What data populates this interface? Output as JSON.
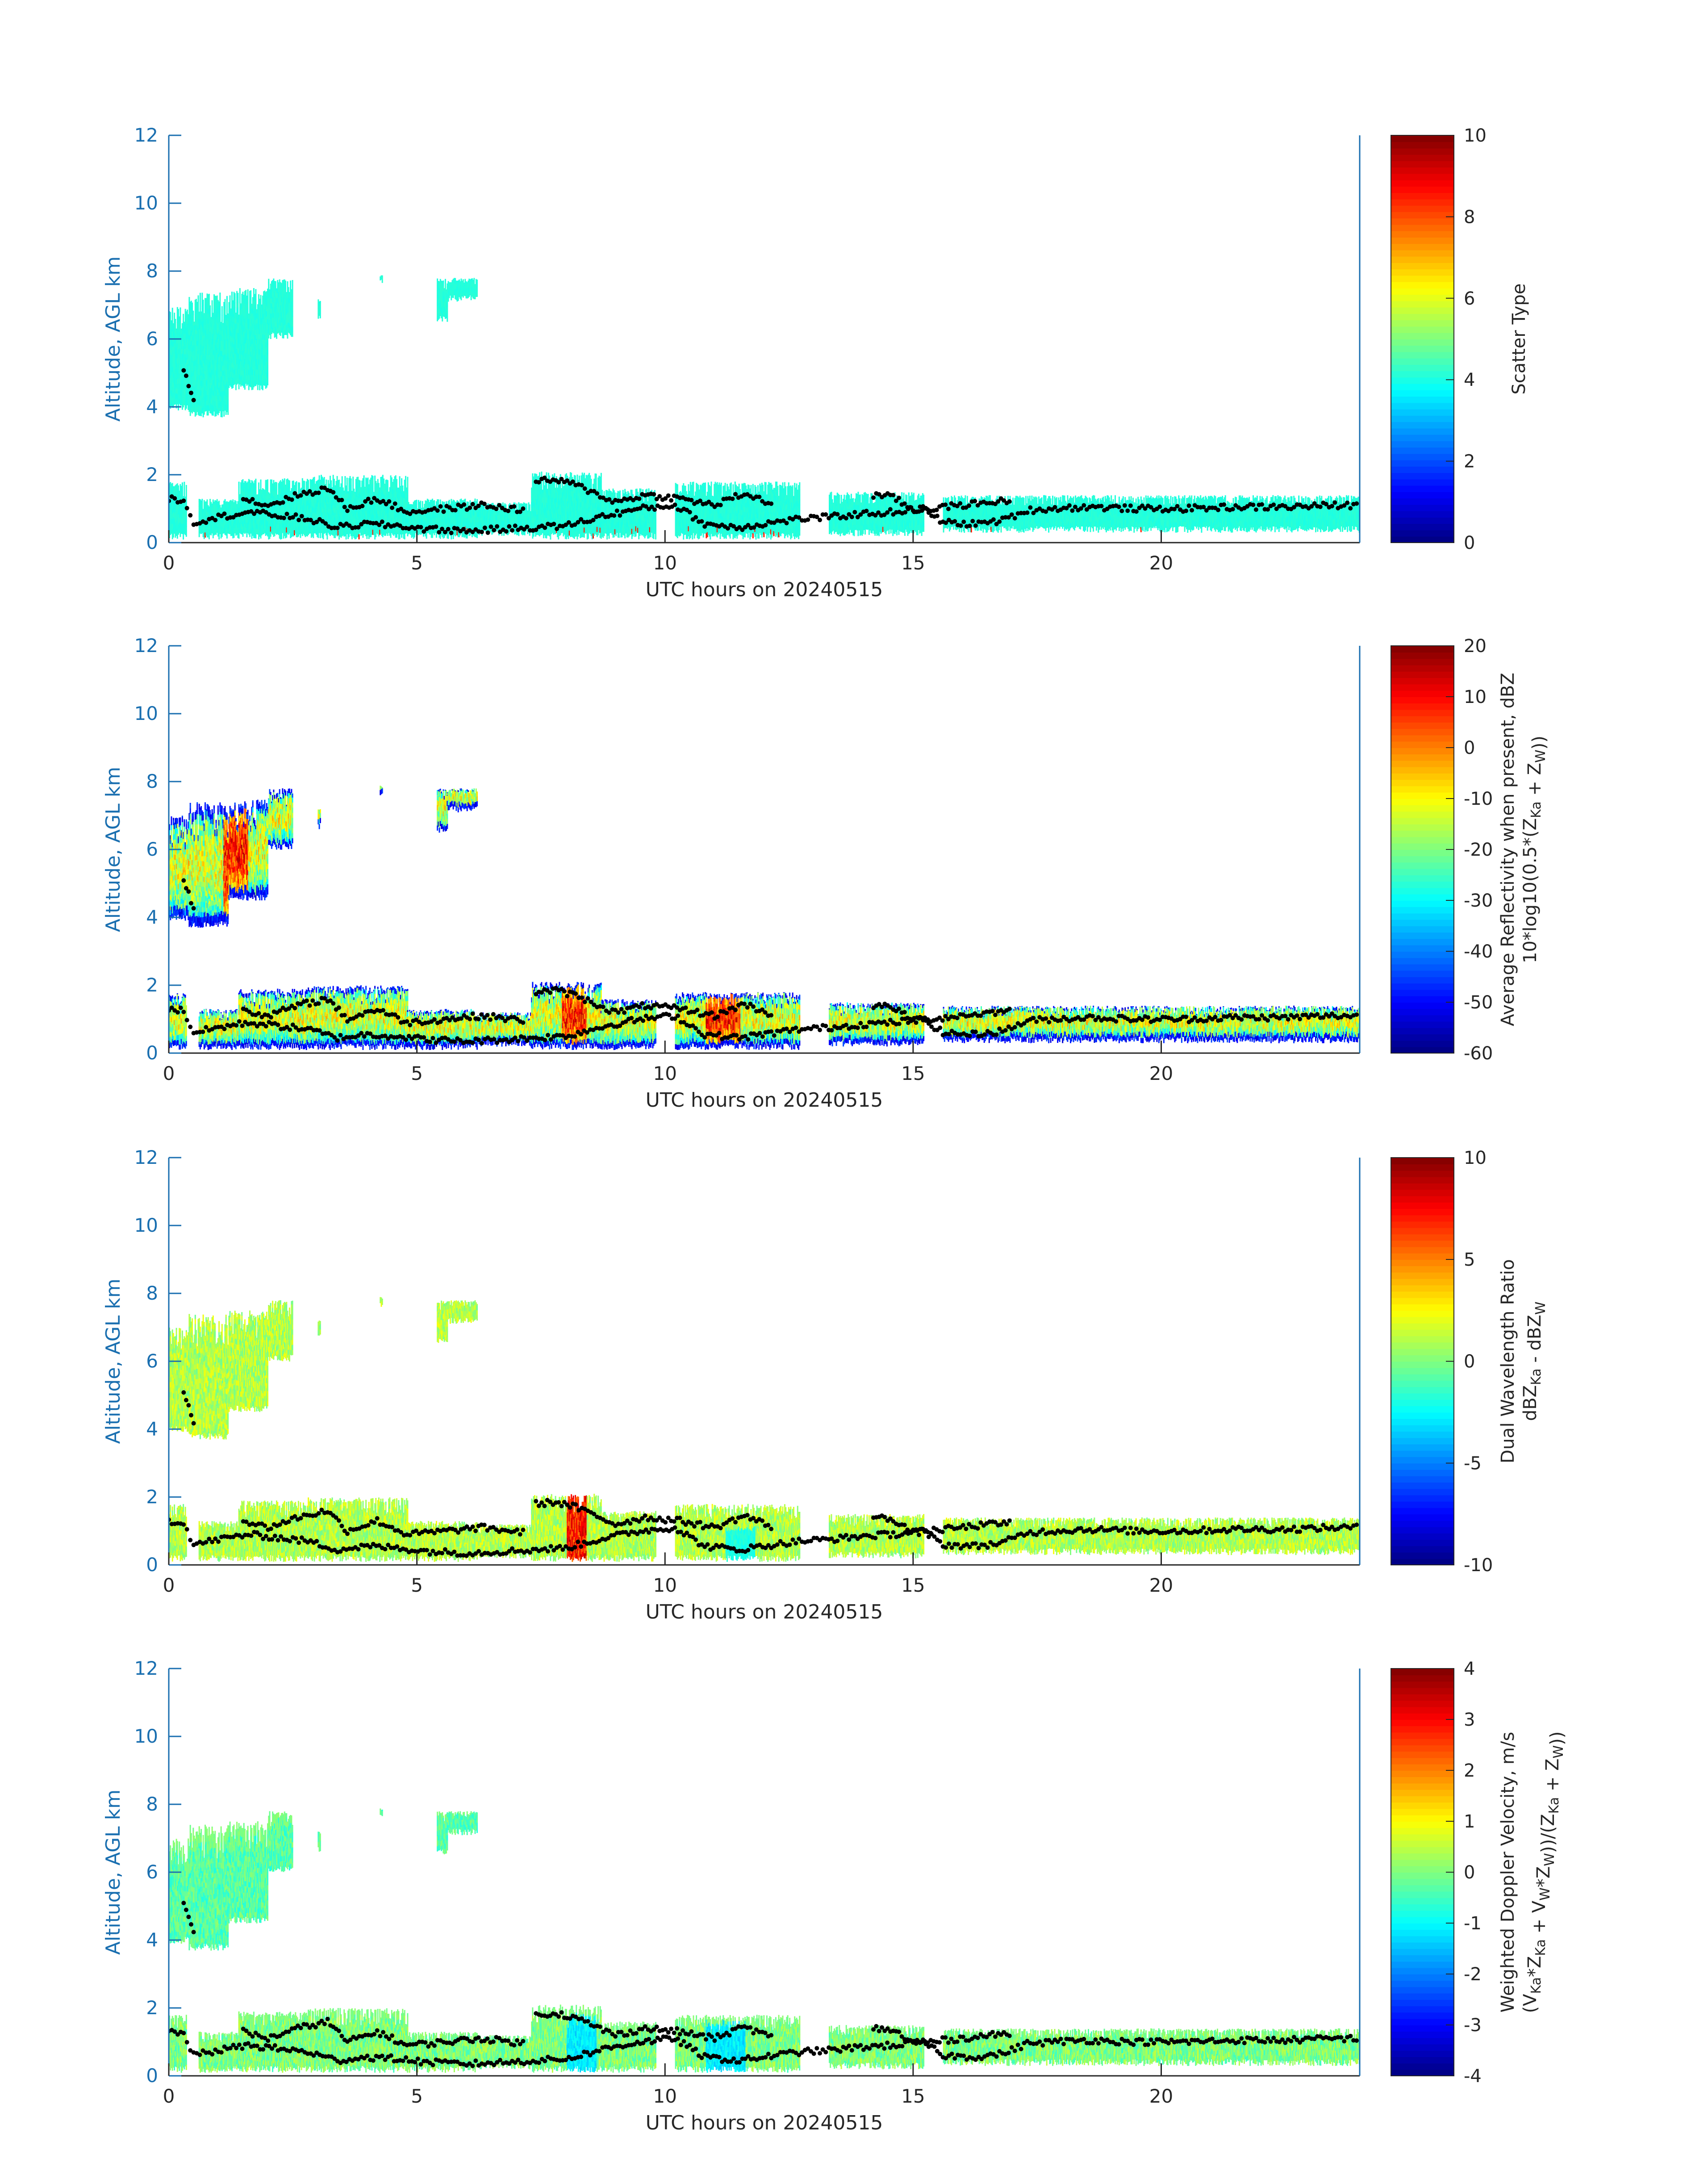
{
  "figure": {
    "background": "#ffffff",
    "axis_color": "#1a6fb0",
    "point_color": "#000000"
  },
  "chart_data": [
    {
      "type": "heatmap",
      "title": "",
      "xlabel": "UTC hours on 20240515",
      "ylabel": "Altitude, AGL km",
      "xlim": [
        0,
        24
      ],
      "ylim": [
        0,
        12
      ],
      "xticks": [
        "0",
        "5",
        "10",
        "15",
        "20"
      ],
      "yticks": [
        "0",
        "2",
        "4",
        "6",
        "8",
        "10",
        "12"
      ],
      "colorbar": {
        "label_lines": [
          "Scatter Type"
        ],
        "range": [
          0,
          10
        ],
        "ticks": [
          "0",
          "2",
          "4",
          "6",
          "8",
          "10"
        ],
        "colormap": "jet"
      },
      "field": "scatter_type"
    },
    {
      "type": "heatmap",
      "title": "",
      "xlabel": "UTC hours on 20240515",
      "ylabel": "Altitude, AGL km",
      "xlim": [
        0,
        24
      ],
      "ylim": [
        0,
        12
      ],
      "xticks": [
        "0",
        "5",
        "10",
        "15",
        "20"
      ],
      "yticks": [
        "0",
        "2",
        "4",
        "6",
        "8",
        "10",
        "12"
      ],
      "colorbar": {
        "label_lines": [
          "Average Reflectivity when present, dBZ",
          "10*log10(0.5*(Z_Ka + Z_W))"
        ],
        "range": [
          -60,
          20
        ],
        "ticks": [
          "-60",
          "-50",
          "-40",
          "-30",
          "-20",
          "-10",
          "0",
          "10",
          "20"
        ],
        "colormap": "jet"
      },
      "field": "reflectivity"
    },
    {
      "type": "heatmap",
      "title": "",
      "xlabel": "UTC hours on 20240515",
      "ylabel": "Altitude, AGL km",
      "xlim": [
        0,
        24
      ],
      "ylim": [
        0,
        12
      ],
      "xticks": [
        "0",
        "5",
        "10",
        "15",
        "20"
      ],
      "yticks": [
        "0",
        "2",
        "4",
        "6",
        "8",
        "10",
        "12"
      ],
      "colorbar": {
        "label_lines": [
          "Dual Wavelength Ratio",
          "dBZ_Ka - dBZ_W"
        ],
        "range": [
          -10,
          10
        ],
        "ticks": [
          "-10",
          "-5",
          "0",
          "5",
          "10"
        ],
        "colormap": "jet"
      },
      "field": "dwr"
    },
    {
      "type": "heatmap",
      "title": "",
      "xlabel": "UTC hours on 20240515",
      "ylabel": "Altitude, AGL km",
      "xlim": [
        0,
        24
      ],
      "ylim": [
        0,
        12
      ],
      "xticks": [
        "0",
        "5",
        "10",
        "15",
        "20"
      ],
      "yticks": [
        "0",
        "2",
        "4",
        "6",
        "8",
        "10",
        "12"
      ],
      "colorbar": {
        "label_lines": [
          "Weighted Doppler Velocity, m/s",
          "(V_Ka*Z_Ka + V_W*Z_W))/(Z_Ka + Z_W))"
        ],
        "range": [
          -4,
          4
        ],
        "ticks": [
          "-4",
          "-3",
          "-2",
          "-1",
          "0",
          "1",
          "2",
          "3",
          "4"
        ],
        "colormap": "jet"
      },
      "field": "velocity"
    }
  ],
  "cloud_regions": [
    {
      "x0": 0.0,
      "x1": 0.4,
      "top": 7.0,
      "base": 3.9
    },
    {
      "x0": 0.4,
      "x1": 1.2,
      "top": 7.4,
      "base": 3.7
    },
    {
      "x0": 1.2,
      "x1": 2.0,
      "top": 7.5,
      "base": 4.5
    },
    {
      "x0": 2.0,
      "x1": 2.5,
      "top": 7.8,
      "base": 6.0
    },
    {
      "x0": 3.0,
      "x1": 3.05,
      "top": 7.2,
      "base": 6.6
    },
    {
      "x0": 4.25,
      "x1": 4.3,
      "top": 7.9,
      "base": 7.6
    },
    {
      "x0": 5.4,
      "x1": 5.6,
      "top": 7.8,
      "base": 6.5
    },
    {
      "x0": 5.6,
      "x1": 6.2,
      "top": 7.8,
      "base": 7.1
    },
    {
      "x0": 0.0,
      "x1": 0.35,
      "top": 1.8,
      "base": 0.1
    },
    {
      "x0": 0.6,
      "x1": 1.4,
      "top": 1.3,
      "base": 0.1
    },
    {
      "x0": 1.4,
      "x1": 2.8,
      "top": 1.9,
      "base": 0.1
    },
    {
      "x0": 2.8,
      "x1": 4.8,
      "top": 2.0,
      "base": 0.1
    },
    {
      "x0": 4.8,
      "x1": 6.2,
      "top": 1.3,
      "base": 0.1
    },
    {
      "x0": 6.2,
      "x1": 7.3,
      "top": 1.2,
      "base": 0.2
    },
    {
      "x0": 7.3,
      "x1": 8.7,
      "top": 2.1,
      "base": 0.1
    },
    {
      "x0": 8.7,
      "x1": 9.8,
      "top": 1.6,
      "base": 0.1
    },
    {
      "x0": 10.2,
      "x1": 12.7,
      "top": 1.8,
      "base": 0.1
    },
    {
      "x0": 13.3,
      "x1": 15.2,
      "top": 1.5,
      "base": 0.2
    },
    {
      "x0": 15.6,
      "x1": 17.5,
      "top": 1.4,
      "base": 0.3
    },
    {
      "x0": 17.5,
      "x1": 24.0,
      "top": 1.4,
      "base": 0.3
    }
  ],
  "point_tracks": [
    [
      [
        0.0,
        1.3
      ],
      [
        0.3,
        1.25
      ],
      [
        0.5,
        0.6
      ],
      [
        1.0,
        0.75
      ],
      [
        1.6,
        0.9
      ],
      [
        2.2,
        0.8
      ],
      [
        2.8,
        0.7
      ],
      [
        3.4,
        0.45
      ],
      [
        4.0,
        0.55
      ],
      [
        4.6,
        0.5
      ],
      [
        5.2,
        0.4
      ],
      [
        6.0,
        0.35
      ],
      [
        6.8,
        0.4
      ],
      [
        7.4,
        0.45
      ],
      [
        8.0,
        0.5
      ],
      [
        8.8,
        0.8
      ],
      [
        9.5,
        1.0
      ],
      [
        10.2,
        1.1
      ],
      [
        10.8,
        0.55
      ],
      [
        11.5,
        0.45
      ],
      [
        12.2,
        0.6
      ],
      [
        12.7,
        0.7
      ],
      [
        13.3,
        0.75
      ],
      [
        14.0,
        0.85
      ],
      [
        14.6,
        0.9
      ],
      [
        15.2,
        1.0
      ],
      [
        15.6,
        0.6
      ],
      [
        16.2,
        0.55
      ],
      [
        16.8,
        0.65
      ],
      [
        17.3,
        0.95
      ],
      [
        17.8,
        1.0
      ],
      [
        18.5,
        1.05
      ],
      [
        19.5,
        1.0
      ],
      [
        20.5,
        1.0
      ],
      [
        21.5,
        1.05
      ],
      [
        22.5,
        1.05
      ],
      [
        23.5,
        1.1
      ],
      [
        24.0,
        1.1
      ]
    ],
    [
      [
        0.3,
        5.1
      ],
      [
        0.45,
        4.5
      ],
      [
        0.55,
        4.0
      ]
    ],
    [
      [
        1.5,
        1.3
      ],
      [
        2.0,
        1.1
      ],
      [
        2.6,
        1.4
      ],
      [
        3.2,
        1.6
      ],
      [
        3.6,
        1.0
      ],
      [
        4.2,
        1.3
      ],
      [
        4.8,
        0.9
      ],
      [
        5.6,
        1.0
      ],
      [
        6.3,
        1.1
      ],
      [
        7.2,
        0.95
      ]
    ],
    [
      [
        7.4,
        1.8
      ],
      [
        7.8,
        1.85
      ],
      [
        8.2,
        1.7
      ],
      [
        9.0,
        1.2
      ],
      [
        9.6,
        1.4
      ],
      [
        10.3,
        1.3
      ],
      [
        11.0,
        1.1
      ],
      [
        11.6,
        1.45
      ],
      [
        12.2,
        1.1
      ]
    ],
    [
      [
        14.2,
        1.4
      ],
      [
        14.6,
        1.35
      ],
      [
        15.0,
        0.95
      ],
      [
        16.6,
        1.2
      ],
      [
        17.0,
        1.25
      ]
    ]
  ]
}
